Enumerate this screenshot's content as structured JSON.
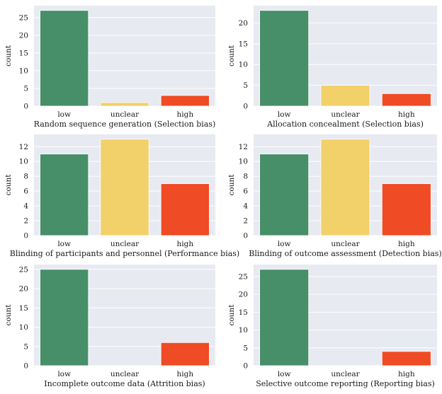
{
  "colors": {
    "low": "#468f68",
    "unclear": "#f2d06a",
    "high": "#ef4b24",
    "panel_bg": "#e8eaf2",
    "grid": "#ffffff"
  },
  "chart_data": [
    {
      "type": "bar",
      "categories": [
        "low",
        "unclear",
        "high"
      ],
      "values": [
        27,
        1,
        3
      ],
      "xlabel": "Random sequence generation (Selection bias)",
      "ylabel": "count",
      "ylim": [
        0,
        28.35
      ],
      "yticks": [
        0,
        5,
        10,
        15,
        20,
        25
      ],
      "grid": true
    },
    {
      "type": "bar",
      "categories": [
        "low",
        "unclear",
        "high"
      ],
      "values": [
        23,
        5,
        3
      ],
      "xlabel": "Allocation concealment (Selection bias)",
      "ylabel": "count",
      "ylim": [
        0,
        24.15
      ],
      "yticks": [
        0,
        5,
        10,
        15,
        20
      ],
      "grid": true
    },
    {
      "type": "bar",
      "categories": [
        "low",
        "unclear",
        "high"
      ],
      "values": [
        11,
        13,
        7
      ],
      "xlabel": "Blinding of participants and personnel (Performance bias)",
      "ylabel": "count",
      "ylim": [
        0,
        13.65
      ],
      "yticks": [
        0,
        2,
        4,
        6,
        8,
        10,
        12
      ],
      "grid": true
    },
    {
      "type": "bar",
      "categories": [
        "low",
        "unclear",
        "high"
      ],
      "values": [
        11,
        13,
        7
      ],
      "xlabel": "Blinding of outcome assessment (Detection bias)",
      "ylabel": "count",
      "ylim": [
        0,
        13.65
      ],
      "yticks": [
        0,
        2,
        4,
        6,
        8,
        10,
        12
      ],
      "grid": true
    },
    {
      "type": "bar",
      "categories": [
        "low",
        "unclear",
        "high"
      ],
      "values": [
        25,
        0,
        6
      ],
      "xlabel": "Incomplete outcome data (Attrition bias)",
      "ylabel": "count",
      "ylim": [
        0,
        26.25
      ],
      "yticks": [
        0,
        5,
        10,
        15,
        20,
        25
      ],
      "grid": true
    },
    {
      "type": "bar",
      "categories": [
        "low",
        "unclear",
        "high"
      ],
      "values": [
        27,
        0,
        4
      ],
      "xlabel": "Selective outcome reporting (Reporting bias)",
      "ylabel": "count",
      "ylim": [
        0,
        28.35
      ],
      "yticks": [
        0,
        5,
        10,
        15,
        20,
        25
      ],
      "grid": true
    }
  ]
}
